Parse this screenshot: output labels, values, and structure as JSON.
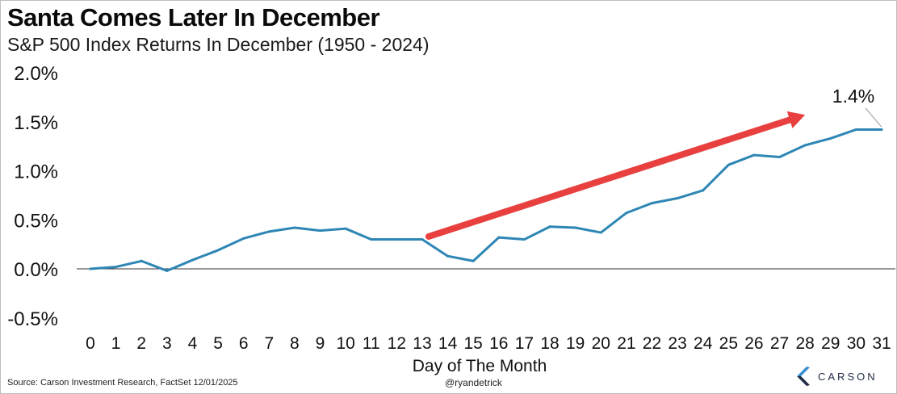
{
  "title": "Santa Comes Later In December",
  "subtitle": "S&P 500 Index Returns In December (1950 - 2024)",
  "footer": {
    "source": "Source: Carson Investment Research, FactSet 12/01/2025",
    "handle": "@ryandetrick",
    "brand": "CARSON",
    "brand_icon": "carson-logo-icon"
  },
  "colors": {
    "line": "#2e86b5",
    "arrow": "#e8403f",
    "axis": "#333333"
  },
  "chart_data": {
    "type": "line",
    "title": "Santa Comes Later In December",
    "subtitle": "S&P 500 Index Returns In December (1950 - 2024)",
    "xlabel": "Day of The Month",
    "ylabel": "",
    "x": [
      0,
      1,
      2,
      3,
      4,
      5,
      6,
      7,
      8,
      9,
      10,
      11,
      12,
      13,
      14,
      15,
      16,
      17,
      18,
      19,
      20,
      21,
      22,
      23,
      24,
      25,
      26,
      27,
      28,
      29,
      30,
      31
    ],
    "series": [
      {
        "values": [
          0.0,
          0.02,
          0.08,
          -0.02,
          0.09,
          0.19,
          0.31,
          0.38,
          0.42,
          0.39,
          0.41,
          0.3,
          0.3,
          0.3,
          0.13,
          0.08,
          0.32,
          0.3,
          0.43,
          0.42,
          0.37,
          0.57,
          0.67,
          0.72,
          0.8,
          1.06,
          1.16,
          1.14,
          1.26,
          1.33,
          1.42,
          1.42
        ]
      }
    ],
    "ylim": [
      -0.5,
      2.0
    ],
    "yticks": [
      -0.5,
      0.0,
      0.5,
      1.0,
      1.5,
      2.0
    ],
    "ytick_labels": [
      "-0.5%",
      "0.0%",
      "0.5%",
      "1.0%",
      "1.5%",
      "2.0%"
    ],
    "xtick_labels": [
      "0",
      "1",
      "2",
      "3",
      "4",
      "5",
      "6",
      "7",
      "8",
      "9",
      "10",
      "11",
      "12",
      "13",
      "14",
      "15",
      "16",
      "17",
      "18",
      "19",
      "20",
      "21",
      "22",
      "23",
      "24",
      "25",
      "26",
      "27",
      "28",
      "29",
      "30",
      "31"
    ],
    "grid": false,
    "annotations": [
      {
        "text": "1.4%",
        "x": 31,
        "y": 1.42
      },
      {
        "type": "arrow",
        "from": [
          13,
          0.33
        ],
        "to": [
          28,
          1.57
        ]
      }
    ]
  }
}
